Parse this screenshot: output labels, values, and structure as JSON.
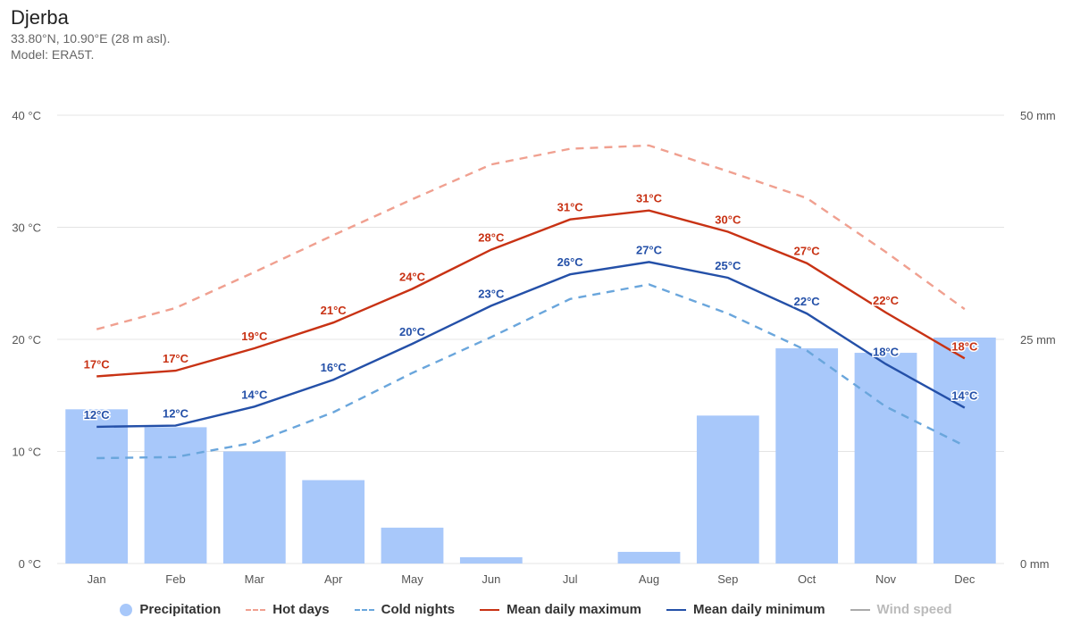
{
  "header": {
    "title": "Djerba",
    "coords": "33.80°N, 10.90°E (28 m asl).",
    "model": "Model: ERA5T."
  },
  "colors": {
    "precipitation": "#a8c8fa",
    "hot_days": "#f0a090",
    "cold_nights": "#6aa6dc",
    "mean_max": "#c83214",
    "mean_min": "#2450a8",
    "wind_speed": "#aaaaaa",
    "grid": "#e4e4e4"
  },
  "legend": [
    {
      "key": "precipitation",
      "label": "Precipitation",
      "style": "dot"
    },
    {
      "key": "hot_days",
      "label": "Hot days",
      "style": "dashed"
    },
    {
      "key": "cold_nights",
      "label": "Cold nights",
      "style": "dashdot"
    },
    {
      "key": "mean_max",
      "label": "Mean daily maximum",
      "style": "solid"
    },
    {
      "key": "mean_min",
      "label": "Mean daily minimum",
      "style": "solid"
    },
    {
      "key": "wind_speed",
      "label": "Wind speed",
      "style": "solid",
      "muted": true
    }
  ],
  "chart_data": {
    "type": "bar",
    "categories": [
      "Jan",
      "Feb",
      "Mar",
      "Apr",
      "May",
      "Jun",
      "Jul",
      "Aug",
      "Sep",
      "Oct",
      "Nov",
      "Dec"
    ],
    "left_axis": {
      "ylim": [
        0,
        40
      ],
      "ticks": [
        0,
        10,
        20,
        30,
        40
      ],
      "tick_labels": [
        "0 °C",
        "10 °C",
        "20 °C",
        "30 °C",
        "40 °C"
      ]
    },
    "right_axis": {
      "ylim": [
        0,
        50
      ],
      "ticks": [
        0,
        25,
        50
      ],
      "tick_labels": [
        "0 mm",
        "25 mm",
        "50 mm"
      ]
    },
    "grid": true,
    "legend_position": "bottom",
    "series": [
      {
        "name": "Precipitation",
        "type": "bar",
        "axis": "right",
        "values": [
          17.2,
          15.2,
          12.5,
          9.3,
          4.0,
          0.7,
          0,
          1.3,
          16.5,
          24.0,
          23.5,
          25.2
        ]
      },
      {
        "name": "Hot days",
        "type": "line",
        "dash": "dashed",
        "axis": "left",
        "values": [
          20.9,
          22.8,
          26.0,
          29.3,
          32.5,
          35.6,
          37.0,
          37.3,
          35.0,
          32.6,
          27.8,
          22.7
        ]
      },
      {
        "name": "Cold nights",
        "type": "line",
        "dash": "dashdot",
        "axis": "left",
        "values": [
          9.4,
          9.5,
          10.8,
          13.5,
          17.0,
          20.2,
          23.6,
          24.9,
          22.3,
          19.0,
          14.0,
          10.5
        ]
      },
      {
        "name": "Mean daily maximum",
        "type": "line",
        "axis": "left",
        "values": [
          16.7,
          17.2,
          19.2,
          21.5,
          24.5,
          28.0,
          30.7,
          31.5,
          29.6,
          26.8,
          22.4,
          18.3
        ],
        "labels": [
          "17°C",
          "17°C",
          "19°C",
          "21°C",
          "24°C",
          "28°C",
          "31°C",
          "31°C",
          "30°C",
          "27°C",
          "22°C",
          "18°C"
        ]
      },
      {
        "name": "Mean daily minimum",
        "type": "line",
        "axis": "left",
        "values": [
          12.2,
          12.3,
          14.0,
          16.4,
          19.6,
          23.0,
          25.8,
          26.9,
          25.5,
          22.3,
          17.8,
          13.9
        ],
        "labels": [
          "12°C",
          "12°C",
          "14°C",
          "16°C",
          "20°C",
          "23°C",
          "26°C",
          "27°C",
          "25°C",
          "22°C",
          "18°C",
          "14°C"
        ]
      }
    ]
  }
}
